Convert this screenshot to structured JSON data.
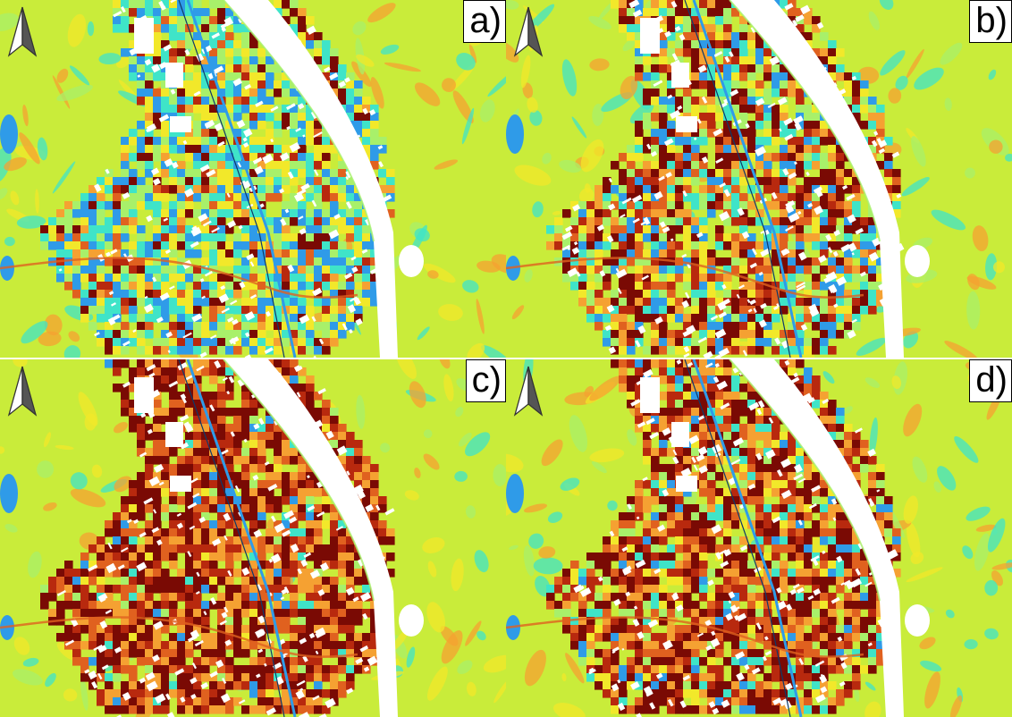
{
  "panels": [
    {
      "id": "a",
      "label": "a)",
      "urban_intensity": 0.25
    },
    {
      "id": "b",
      "label": "b)",
      "urban_intensity": 0.55
    },
    {
      "id": "c",
      "label": "c)",
      "urban_intensity": 0.9
    },
    {
      "id": "d",
      "label": "d)",
      "urban_intensity": 0.8
    }
  ],
  "legend_colors": {
    "base_vegetation": "#c9ec3a",
    "light_green": "#a8f06a",
    "cyan": "#3fe4c8",
    "blue": "#2f9be8",
    "dark_blue": "#0d3a6a",
    "yellow": "#f2e82a",
    "orange": "#f5a132",
    "orange_red": "#e0611f",
    "red": "#b8290e",
    "dark_red": "#7a0a04",
    "river_and_buildings": "#ffffff"
  },
  "north_arrow_icon": "north-arrow-icon"
}
